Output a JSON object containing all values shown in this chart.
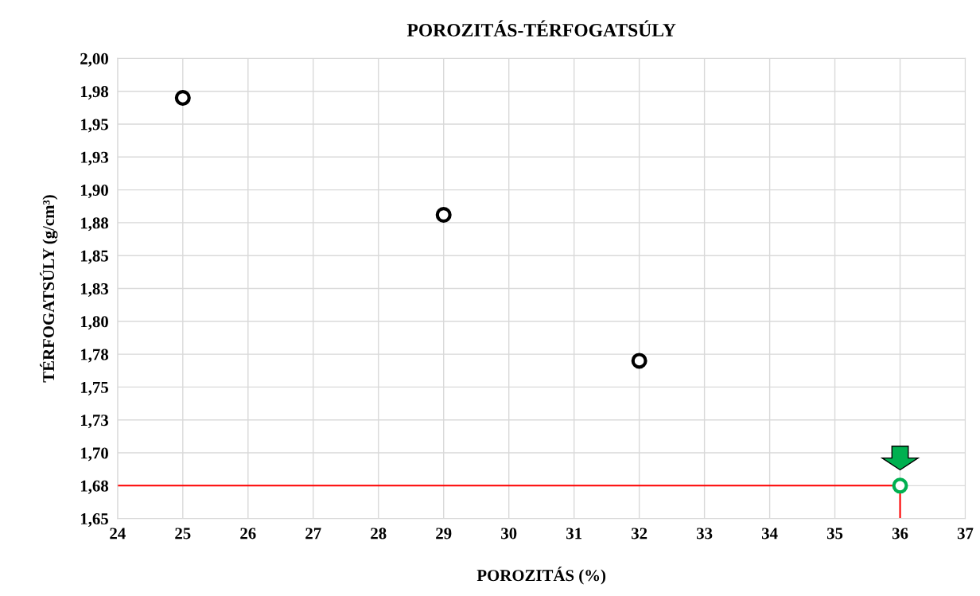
{
  "chart_data": {
    "type": "scatter",
    "title": "POROZITÁS-TÉRFOGATSÚLY",
    "xlabel": "POROZITÁS (%)",
    "ylabel": "TÉRFOGATSÚLY (g/cm³)",
    "series": [
      {
        "type": "line",
        "color": "#ff0000",
        "x": [
          24,
          36,
          36
        ],
        "values": [
          1.675,
          1.675,
          1.65
        ],
        "marker": "none"
      },
      {
        "color": "#000000",
        "x": [
          25,
          29,
          32
        ],
        "values": [
          1.97,
          1.881,
          1.77
        ],
        "marker": "circle"
      },
      {
        "color": "#00b050",
        "x": [
          36
        ],
        "values": [
          1.675
        ],
        "marker": "circle"
      }
    ],
    "xlim": [
      24,
      37
    ],
    "xticks": [
      24,
      25,
      26,
      27,
      28,
      29,
      30,
      31,
      32,
      33,
      34,
      35,
      36,
      37
    ],
    "ylim": [
      1.65,
      2.0
    ],
    "yticks": [
      {
        "value": 1.65,
        "label": "1,65"
      },
      {
        "value": 1.675,
        "label": "1,68"
      },
      {
        "value": 1.7,
        "label": "1,70"
      },
      {
        "value": 1.725,
        "label": "1,73"
      },
      {
        "value": 1.75,
        "label": "1,75"
      },
      {
        "value": 1.775,
        "label": "1,78"
      },
      {
        "value": 1.8,
        "label": "1,80"
      },
      {
        "value": 1.825,
        "label": "1,83"
      },
      {
        "value": 1.85,
        "label": "1,85"
      },
      {
        "value": 1.875,
        "label": "1,88"
      },
      {
        "value": 1.9,
        "label": "1,90"
      },
      {
        "value": 1.925,
        "label": "1,93"
      },
      {
        "value": 1.95,
        "label": "1,95"
      },
      {
        "value": 1.975,
        "label": "1,98"
      },
      {
        "value": 2.0,
        "label": "2,00"
      }
    ],
    "grid": true,
    "legend": false
  }
}
